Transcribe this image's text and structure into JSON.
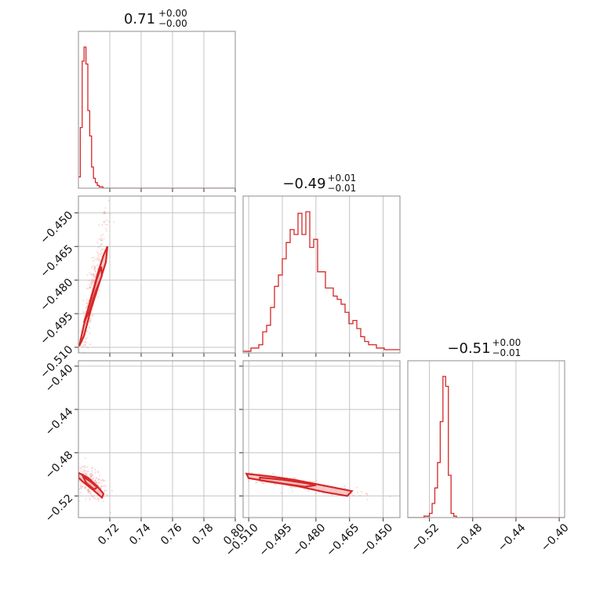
{
  "chart_data": {
    "type": "corner",
    "color": "#d62728",
    "titles": [
      {
        "value": "0.71",
        "plus": "+0.00",
        "minus": "−0.00"
      },
      {
        "value": "−0.49",
        "plus": "+0.01",
        "minus": "−0.01"
      },
      {
        "value": "−0.51",
        "plus": "+0.00",
        "minus": "−0.01"
      }
    ],
    "params": [
      {
        "range": [
          0.7,
          0.8
        ],
        "ticks": [
          0.72,
          0.74,
          0.76,
          0.78,
          0.8
        ],
        "tick_labels": [
          "0.72",
          "0.74",
          "0.76",
          "0.78",
          "0.80"
        ]
      },
      {
        "range": [
          -0.5125,
          -0.4425
        ],
        "ticks": [
          -0.51,
          -0.495,
          -0.48,
          -0.465,
          -0.45
        ],
        "tick_labels": [
          "−0.510",
          "−0.495",
          "−0.480",
          "−0.465",
          "−0.450"
        ]
      },
      {
        "range": [
          -0.54,
          -0.395
        ],
        "ticks": [
          -0.52,
          -0.48,
          -0.44,
          -0.4
        ],
        "tick_labels": [
          "−0.52",
          "−0.48",
          "−0.44",
          "−0.40"
        ]
      }
    ],
    "marginals": [
      {
        "param": 0,
        "bin_start": 0.7,
        "bin_width": 0.0012,
        "counts": [
          8,
          43,
          90,
          100,
          88,
          55,
          37,
          15,
          7,
          4,
          2,
          1,
          1,
          0,
          0,
          0,
          0,
          0,
          0,
          0,
          0,
          0,
          0,
          0,
          0,
          0,
          0,
          0,
          0,
          0,
          0,
          0,
          0,
          0,
          0,
          0,
          0,
          0,
          0,
          0,
          0,
          0,
          0,
          0,
          0,
          0,
          0,
          0,
          0,
          0,
          0,
          0,
          0,
          0,
          0,
          0,
          0,
          0,
          0,
          0,
          0,
          0,
          0,
          0,
          0,
          0,
          0,
          0,
          0,
          0,
          0,
          0,
          0,
          0,
          0,
          0,
          0,
          0,
          0,
          0,
          0,
          0,
          0,
          0
        ]
      },
      {
        "param": 1,
        "bin_start": -0.5125,
        "bin_width": 0.00175,
        "counts": [
          1,
          1,
          3,
          3,
          5,
          13,
          17,
          28,
          41,
          48,
          58,
          68,
          76,
          73,
          86,
          73,
          87,
          65,
          70,
          50,
          50,
          40,
          40,
          35,
          33,
          30,
          25,
          18,
          20,
          15,
          10,
          7,
          5,
          5,
          3,
          3,
          2,
          2,
          2,
          2
        ]
      },
      {
        "param": 2,
        "bin_start": -0.54,
        "bin_width": 0.0025,
        "counts": [
          0,
          0,
          0,
          0,
          0,
          0,
          1,
          1,
          3,
          10,
          21,
          39,
          68,
          100,
          93,
          30,
          3,
          1,
          0,
          0,
          0,
          0,
          0,
          0,
          0,
          0,
          0,
          0,
          0,
          0,
          0,
          0,
          0,
          0,
          0,
          0,
          0,
          0,
          0,
          0,
          0,
          0,
          0,
          0,
          0,
          0,
          0,
          0,
          0,
          0,
          0,
          0,
          0,
          0,
          0,
          0,
          0,
          0
        ]
      }
    ],
    "joints": [
      {
        "x_param": 0,
        "y_param": 1,
        "contours": [
          [
            [
              0.7005,
              -0.5095
            ],
            [
              0.7035,
              -0.5
            ],
            [
              0.708,
              -0.488
            ],
            [
              0.713,
              -0.4755
            ],
            [
              0.716,
              -0.469
            ],
            [
              0.7185,
              -0.465
            ],
            [
              0.7175,
              -0.472
            ],
            [
              0.713,
              -0.482
            ],
            [
              0.708,
              -0.493
            ],
            [
              0.7035,
              -0.505
            ],
            [
              0.7005,
              -0.5095
            ]
          ],
          [
            [
              0.7035,
              -0.499
            ],
            [
              0.7075,
              -0.49
            ],
            [
              0.7115,
              -0.48
            ],
            [
              0.7145,
              -0.474
            ],
            [
              0.715,
              -0.478
            ],
            [
              0.711,
              -0.485
            ],
            [
              0.707,
              -0.494
            ],
            [
              0.7035,
              -0.499
            ]
          ]
        ],
        "scatter_center": [
          0.709,
          -0.485
        ],
        "scatter_spread": [
          0.005,
          0.018
        ],
        "scatter_corr": 0.92
      },
      {
        "x_param": 0,
        "y_param": 2,
        "contours": [
          [
            [
              0.7,
              -0.4985
            ],
            [
              0.706,
              -0.503
            ],
            [
              0.712,
              -0.511
            ],
            [
              0.716,
              -0.518
            ],
            [
              0.715,
              -0.5215
            ],
            [
              0.709,
              -0.514
            ],
            [
              0.703,
              -0.507
            ],
            [
              0.7,
              -0.503
            ],
            [
              0.7,
              -0.4985
            ]
          ],
          [
            [
              0.703,
              -0.502
            ],
            [
              0.708,
              -0.507
            ],
            [
              0.712,
              -0.512
            ],
            [
              0.71,
              -0.514
            ],
            [
              0.705,
              -0.508
            ],
            [
              0.703,
              -0.502
            ]
          ]
        ],
        "scatter_center": [
          0.707,
          -0.508
        ],
        "scatter_spread": [
          0.006,
          0.008
        ],
        "scatter_corr": -0.6
      },
      {
        "x_param": 1,
        "y_param": 2,
        "contours": [
          [
            [
              -0.511,
              -0.4995
            ],
            [
              -0.5,
              -0.502
            ],
            [
              -0.49,
              -0.505
            ],
            [
              -0.48,
              -0.509
            ],
            [
              -0.47,
              -0.513
            ],
            [
              -0.464,
              -0.5155
            ],
            [
              -0.466,
              -0.52
            ],
            [
              -0.476,
              -0.5165
            ],
            [
              -0.488,
              -0.511
            ],
            [
              -0.5,
              -0.507
            ],
            [
              -0.51,
              -0.5035
            ],
            [
              -0.511,
              -0.4995
            ]
          ],
          [
            [
              -0.505,
              -0.503
            ],
            [
              -0.495,
              -0.505
            ],
            [
              -0.485,
              -0.508
            ],
            [
              -0.48,
              -0.51
            ],
            [
              -0.485,
              -0.5115
            ],
            [
              -0.495,
              -0.5085
            ],
            [
              -0.505,
              -0.5055
            ],
            [
              -0.505,
              -0.503
            ]
          ]
        ],
        "scatter_center": [
          -0.488,
          -0.509
        ],
        "scatter_spread": [
          0.013,
          0.005
        ],
        "scatter_corr": -0.85
      }
    ],
    "grid": true
  }
}
